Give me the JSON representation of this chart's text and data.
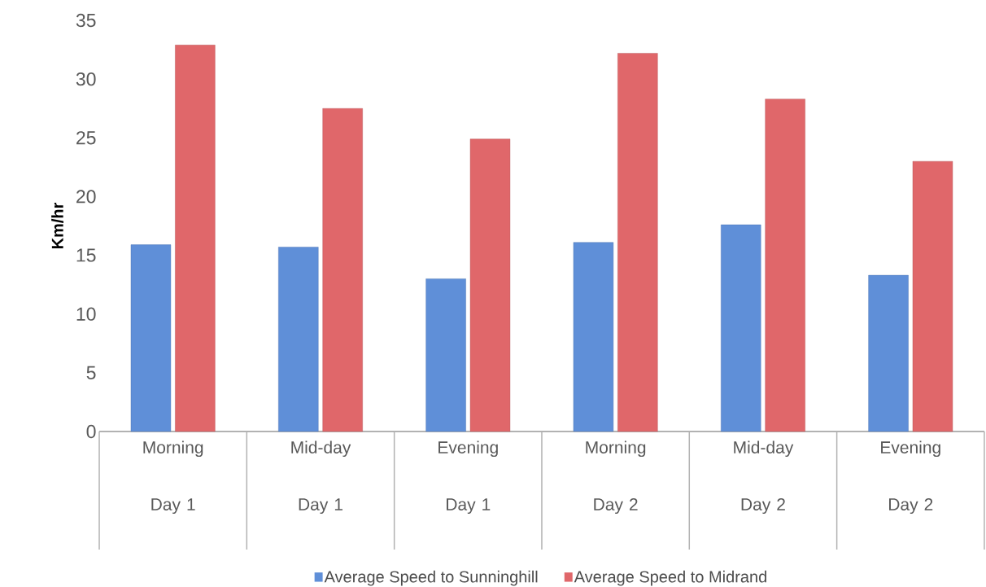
{
  "chart_data": {
    "type": "bar",
    "ylabel": "Km/hr",
    "categories": [
      "Morning Day 1",
      "Mid-day Day 1",
      "Evening Day 1",
      "Morning Day 2",
      "Mid-day Day 2",
      "Evening Day 2"
    ],
    "series": [
      {
        "name": "Average Speed to Sunninghill",
        "color": "#5f8fd8",
        "values": [
          15.9,
          15.7,
          13.0,
          16.1,
          17.6,
          13.3
        ]
      },
      {
        "name": "Average Speed to Midrand",
        "color": "#e0676a",
        "values": [
          32.9,
          27.5,
          24.9,
          32.2,
          28.3,
          23.0
        ]
      }
    ],
    "ylim": [
      0,
      35
    ],
    "yticks": [
      0,
      5,
      10,
      15,
      20,
      25,
      30,
      35
    ],
    "legend": "bottom"
  }
}
